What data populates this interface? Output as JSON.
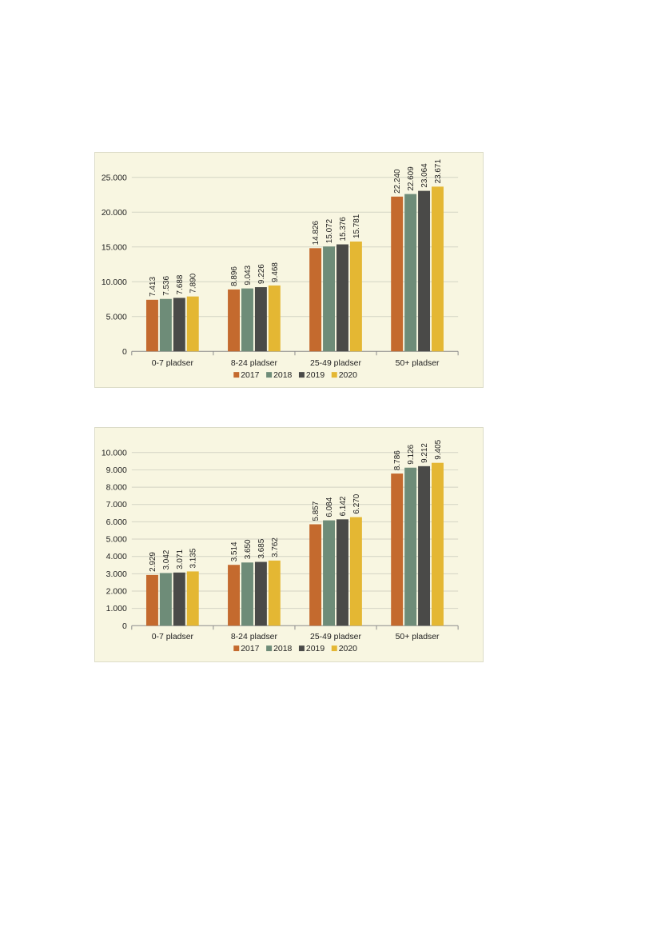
{
  "chart_data": [
    {
      "type": "bar",
      "title": "",
      "xlabel": "",
      "ylabel": "",
      "categories": [
        "0-7 pladser",
        "8-24 pladser",
        "25-49 pladser",
        "50+ pladser"
      ],
      "ylim": [
        0,
        25000
      ],
      "yticks": [
        0,
        5000,
        10000,
        15000,
        20000,
        25000
      ],
      "ytick_labels": [
        "0",
        "5.000",
        "10.000",
        "15.000",
        "20.000",
        "25.000"
      ],
      "grid": true,
      "legend_position": "bottom",
      "series": [
        {
          "name": "2017",
          "color": "#c46a2e",
          "values": [
            7413,
            8896,
            14826,
            22240
          ],
          "labels": [
            "7.413",
            "8.896",
            "14.826",
            "22.240"
          ]
        },
        {
          "name": "2018",
          "color": "#6e8c78",
          "values": [
            7536,
            9043,
            15072,
            22609
          ],
          "labels": [
            "7.536",
            "9.043",
            "15.072",
            "22.609"
          ]
        },
        {
          "name": "2019",
          "color": "#4a4a48",
          "values": [
            7688,
            9226,
            15376,
            23064
          ],
          "labels": [
            "7.688",
            "9.226",
            "15.376",
            "23.064"
          ]
        },
        {
          "name": "2020",
          "color": "#e4b733",
          "values": [
            7890,
            9468,
            15781,
            23671
          ],
          "labels": [
            "7.890",
            "9.468",
            "15.781",
            "23.671"
          ]
        }
      ]
    },
    {
      "type": "bar",
      "title": "",
      "xlabel": "",
      "ylabel": "",
      "categories": [
        "0-7 pladser",
        "8-24 pladser",
        "25-49 pladser",
        "50+ pladser"
      ],
      "ylim": [
        0,
        10000
      ],
      "yticks": [
        0,
        1000,
        2000,
        3000,
        4000,
        5000,
        6000,
        7000,
        8000,
        9000,
        10000
      ],
      "ytick_labels": [
        "0",
        "1.000",
        "2.000",
        "3.000",
        "4.000",
        "5.000",
        "6.000",
        "7.000",
        "8.000",
        "9.000",
        "10.000"
      ],
      "grid": true,
      "legend_position": "bottom",
      "series": [
        {
          "name": "2017",
          "color": "#c46a2e",
          "values": [
            2929,
            3514,
            5857,
            8786
          ],
          "labels": [
            "2.929",
            "3.514",
            "5.857",
            "8.786"
          ]
        },
        {
          "name": "2018",
          "color": "#6e8c78",
          "values": [
            3042,
            3650,
            6084,
            9126
          ],
          "labels": [
            "3.042",
            "3.650",
            "6.084",
            "9.126"
          ]
        },
        {
          "name": "2019",
          "color": "#4a4a48",
          "values": [
            3071,
            3685,
            6142,
            9212
          ],
          "labels": [
            "3.071",
            "3.685",
            "6.142",
            "9.212"
          ]
        },
        {
          "name": "2020",
          "color": "#e4b733",
          "values": [
            3135,
            3762,
            6270,
            9405
          ],
          "labels": [
            "3.135",
            "3.762",
            "6.270",
            "9.405"
          ]
        }
      ]
    }
  ]
}
